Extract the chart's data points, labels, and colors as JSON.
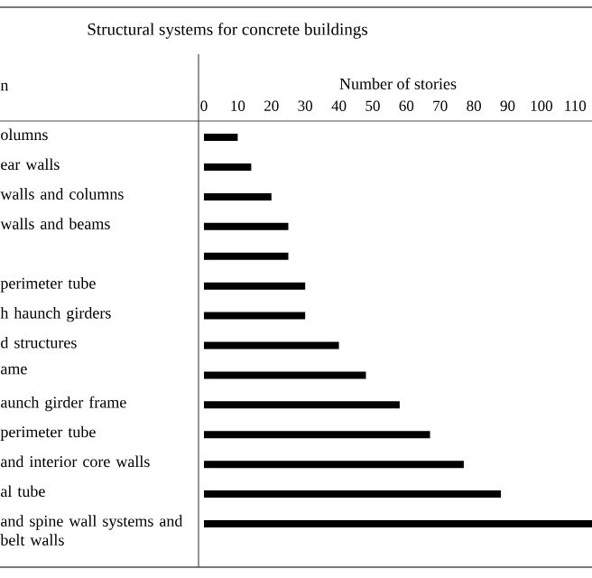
{
  "chart_data": {
    "type": "bar",
    "orientation": "horizontal",
    "title": "Structural systems for concrete buildings",
    "xlabel": "Number of stories",
    "ylabel": "n",
    "categories": [
      "olumns",
      "ear walls",
      "walls and columns",
      "walls and beams",
      null,
      "perimeter tube",
      "h haunch girders",
      "d structures",
      "ame",
      "aunch girder frame",
      "perimeter tube",
      "and interior core walls",
      "al tube",
      "and spine wall systems and belt walls"
    ],
    "values": [
      10,
      14,
      20,
      25,
      25,
      30,
      30,
      40,
      48,
      58,
      67,
      77,
      88,
      115
    ],
    "color": "#000000",
    "xlim": [
      0,
      115
    ],
    "xticks": [
      0,
      10,
      20,
      30,
      40,
      50,
      60,
      70,
      80,
      90,
      100,
      110
    ]
  }
}
